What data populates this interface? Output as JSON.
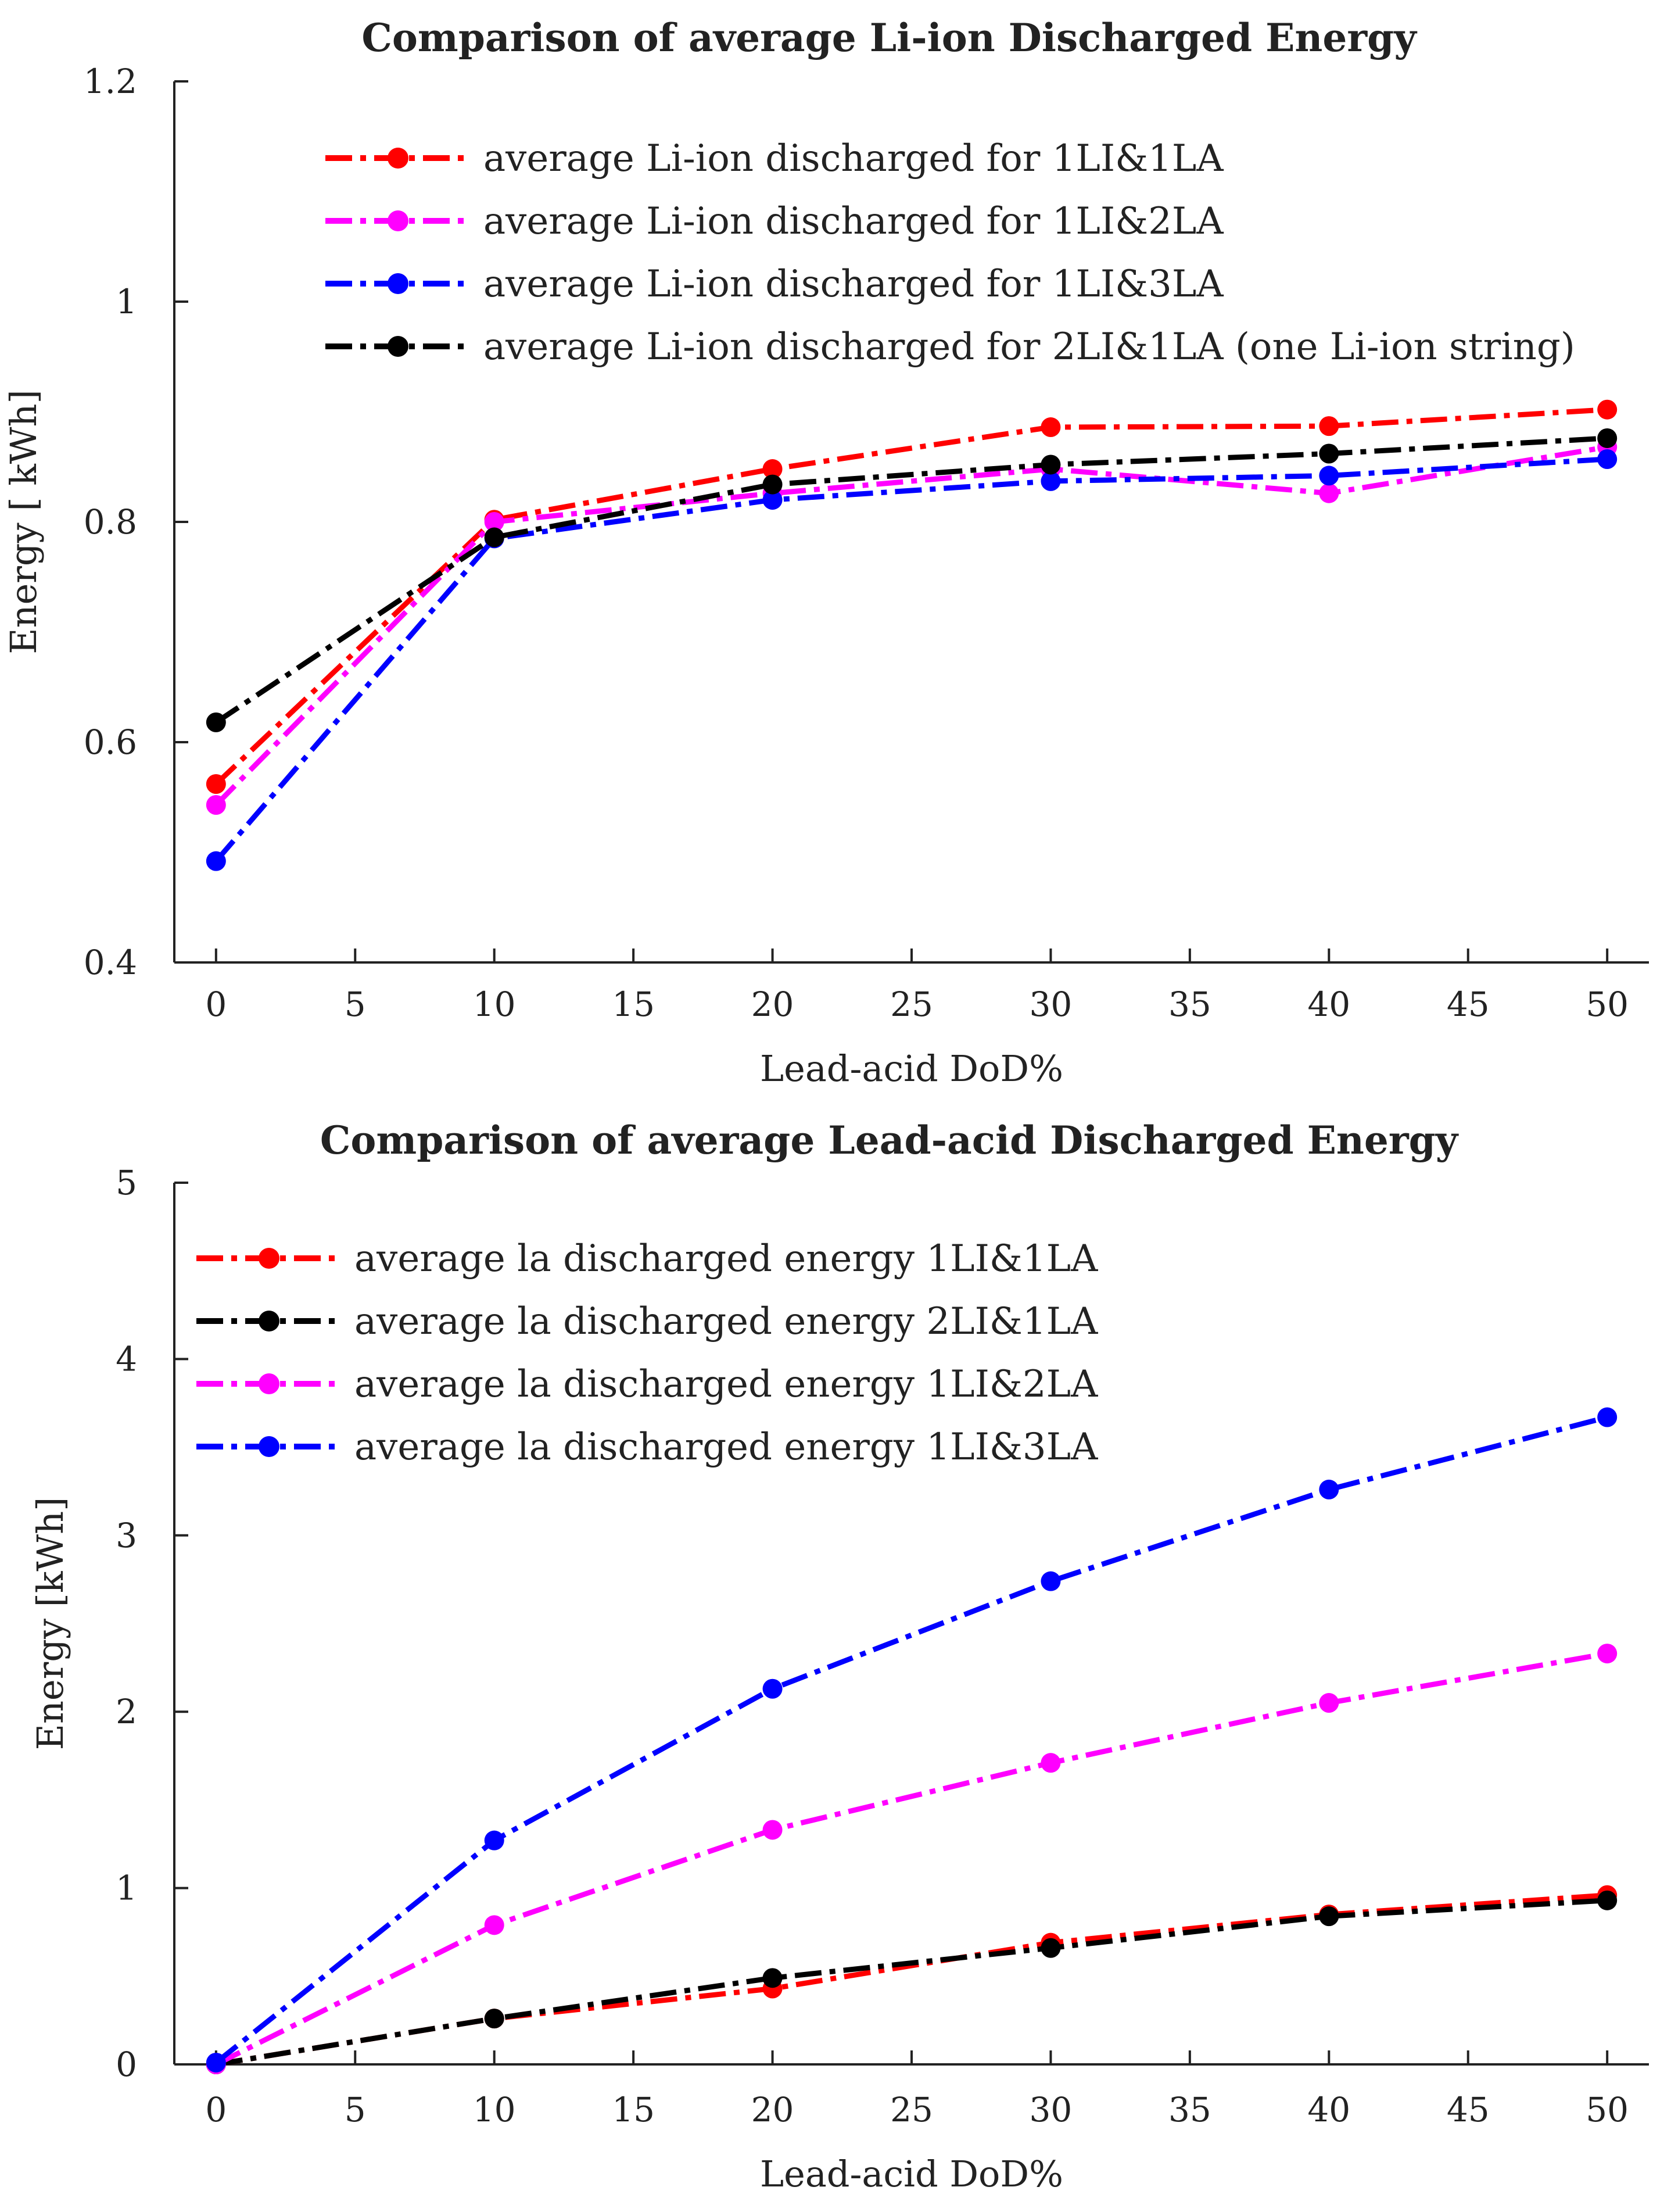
{
  "chart_data": [
    {
      "type": "line",
      "title": "Comparison of average Li-ion Discharged Energy",
      "xlabel": "Lead-acid DoD%",
      "ylabel": "Energy [ kWh]",
      "x": [
        0,
        10,
        20,
        30,
        40,
        50
      ],
      "xlim": [
        -1.5,
        51.5
      ],
      "ylim": [
        0.4,
        1.2
      ],
      "xticks": [
        0,
        5,
        10,
        15,
        20,
        25,
        30,
        35,
        40,
        45,
        50
      ],
      "yticks": [
        0.4,
        0.6,
        0.8,
        1,
        1.2
      ],
      "ytick_labels": [
        "0.4",
        "0.6",
        "0.8",
        "1",
        "1.2"
      ],
      "legend_position": "top-right",
      "series": [
        {
          "name": "average Li-ion discharged for 1LI&1LA",
          "color": "#ff0000",
          "values": [
            0.562,
            0.802,
            0.848,
            0.886,
            0.887,
            0.902
          ]
        },
        {
          "name": "average Li-ion discharged for 1LI&2LA",
          "color": "#ff00ff",
          "values": [
            0.543,
            0.8,
            0.826,
            0.848,
            0.826,
            0.868
          ]
        },
        {
          "name": "average Li-ion discharged for 1LI&3LA",
          "color": "#0000ff",
          "values": [
            0.492,
            0.785,
            0.82,
            0.837,
            0.842,
            0.857
          ]
        },
        {
          "name": "average Li-ion discharged for 2LI&1LA (one Li-ion string)",
          "color": "#000000",
          "values": [
            0.618,
            0.786,
            0.834,
            0.852,
            0.862,
            0.876
          ]
        }
      ]
    },
    {
      "type": "line",
      "title": "Comparison of average Lead-acid Discharged Energy",
      "xlabel": "Lead-acid DoD%",
      "ylabel": "Energy [kWh]",
      "x": [
        0,
        10,
        20,
        30,
        40,
        50
      ],
      "xlim": [
        -1.5,
        51.5
      ],
      "ylim": [
        0,
        5
      ],
      "xticks": [
        0,
        5,
        10,
        15,
        20,
        25,
        30,
        35,
        40,
        45,
        50
      ],
      "yticks": [
        0,
        1,
        2,
        3,
        4,
        5
      ],
      "ytick_labels": [
        "0",
        "1",
        "2",
        "3",
        "4",
        "5"
      ],
      "legend_position": "top-left",
      "series": [
        {
          "name": "average la discharged energy 1LI&1LA",
          "color": "#ff0000",
          "values": [
            0,
            0.26,
            0.43,
            0.69,
            0.85,
            0.96
          ]
        },
        {
          "name": "average la discharged energy 2LI&1LA",
          "color": "#000000",
          "values": [
            0,
            0.26,
            0.49,
            0.66,
            0.84,
            0.93
          ]
        },
        {
          "name": "average la discharged energy 1LI&2LA",
          "color": "#ff00ff",
          "values": [
            0,
            0.79,
            1.33,
            1.71,
            2.05,
            2.33
          ]
        },
        {
          "name": "average la discharged energy 1LI&3LA",
          "color": "#0000ff",
          "values": [
            0.01,
            1.27,
            2.13,
            2.74,
            3.26,
            3.67
          ]
        }
      ]
    }
  ]
}
